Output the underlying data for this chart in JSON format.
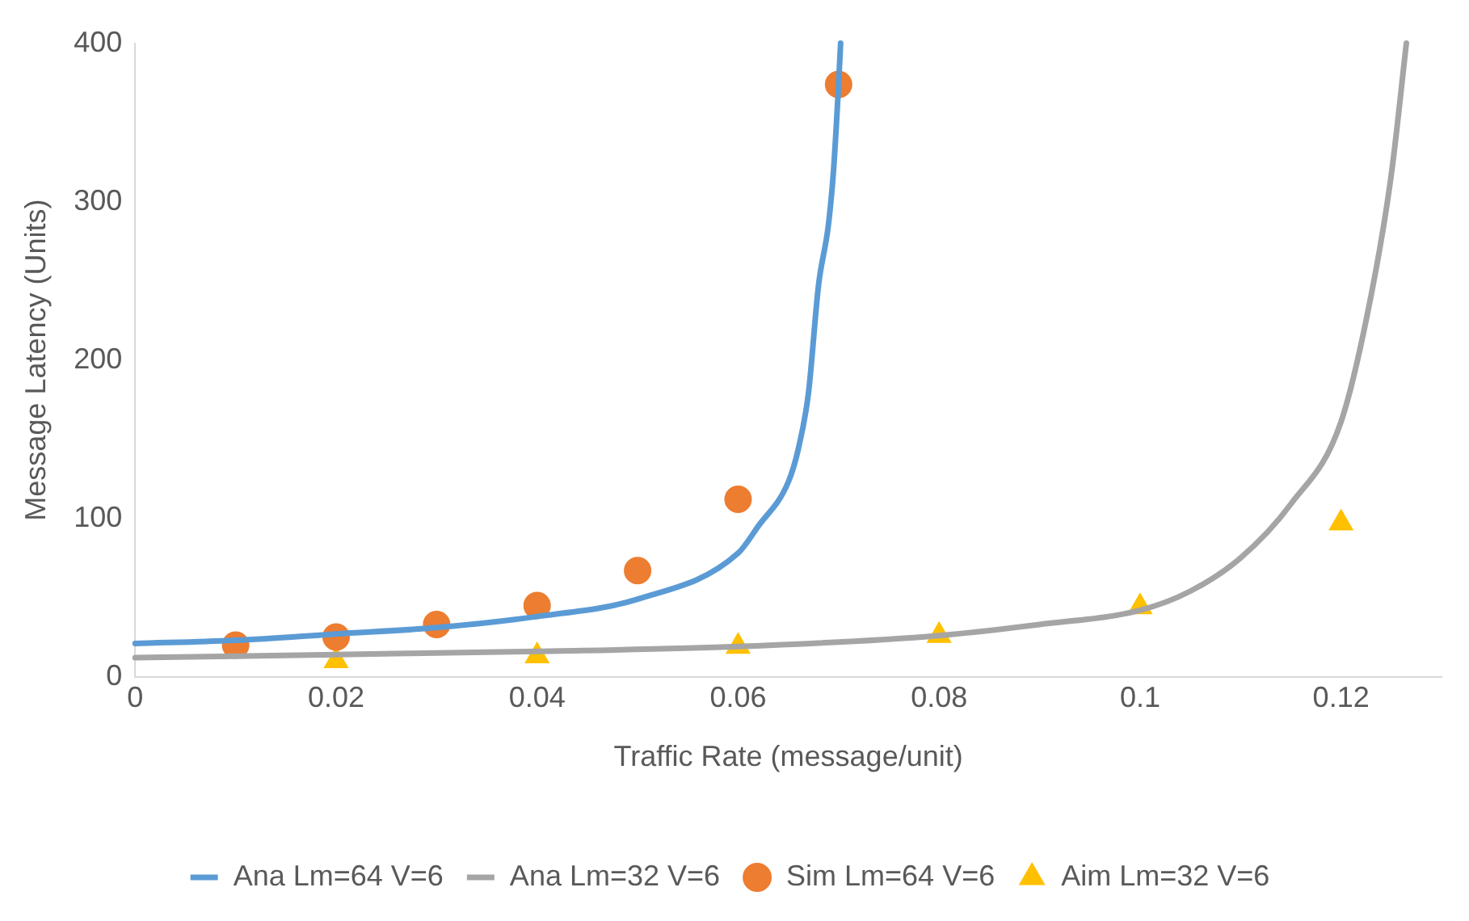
{
  "chart_data": {
    "type": "line",
    "xlabel": "Traffic Rate (message/unit)",
    "ylabel": "Message Latency (Units)",
    "xlim": [
      0,
      0.13
    ],
    "xticks": [
      0,
      0.02,
      0.04,
      0.06,
      0.08,
      0.1,
      0.12
    ],
    "ylim": [
      0,
      400
    ],
    "yticks": [
      0,
      100,
      200,
      300,
      400
    ],
    "grid": false,
    "legend": "bottom",
    "series": [
      {
        "name": "Ana Lm=64 V=6",
        "type": "line",
        "color": "#5b9bd5",
        "marker": "none",
        "x": [
          0,
          0.01,
          0.02,
          0.03,
          0.04,
          0.05,
          0.06,
          0.062,
          0.065,
          0.066,
          0.067,
          0.068,
          0.069,
          0.0695,
          0.07,
          0.0702
        ],
        "values": [
          21,
          23,
          27,
          31,
          38,
          49,
          78,
          95,
          123,
          144,
          179,
          247,
          286,
          320,
          374,
          400
        ]
      },
      {
        "name": "Ana Lm=32 V=6",
        "type": "line",
        "color": "#a5a5a5",
        "marker": "none",
        "x": [
          0,
          0.02,
          0.04,
          0.06,
          0.08,
          0.09,
          0.1,
          0.105,
          0.11,
          0.115,
          0.12,
          0.123,
          0.125,
          0.1265
        ],
        "values": [
          12,
          14,
          16,
          19,
          26,
          33,
          42,
          54,
          75,
          109,
          161,
          241,
          317,
          400
        ]
      },
      {
        "name": "Sim Lm=64 V=6",
        "type": "scatter",
        "color": "#ed7d31",
        "marker": "circle",
        "x": [
          0.01,
          0.02,
          0.03,
          0.04,
          0.05,
          0.06,
          0.07
        ],
        "values": [
          20,
          25,
          33,
          45,
          67,
          112,
          374
        ]
      },
      {
        "name": "Aim Lm=32 V=6",
        "type": "scatter",
        "color": "#ffc000",
        "marker": "triangle",
        "x": [
          0.02,
          0.04,
          0.06,
          0.08,
          0.1,
          0.12
        ],
        "values": [
          10,
          13,
          19,
          26,
          44,
          97
        ]
      }
    ]
  }
}
